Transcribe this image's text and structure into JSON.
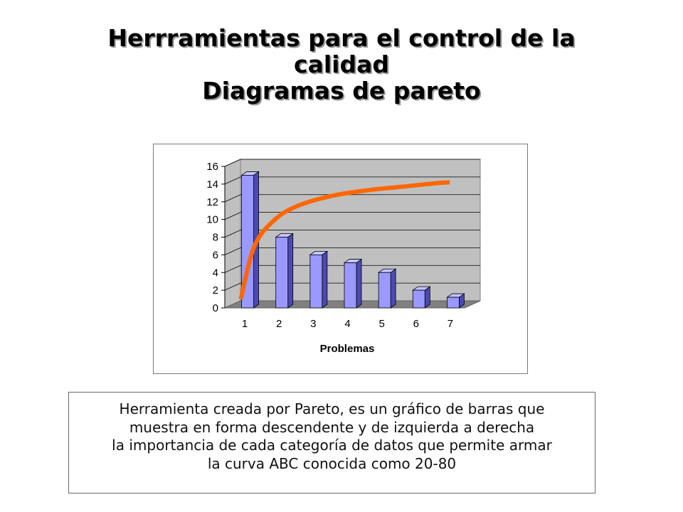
{
  "slide": {
    "title_line1": "Herrramientas para el control de la",
    "title_line2": "calidad",
    "subtitle": "Diagramas de pareto"
  },
  "description": {
    "lines": [
      "Herramienta creada por Pareto, es un gráfico de barras que",
      "muestra en forma descendente y de izquierda a derecha",
      "la importancia de cada categoría de datos que permite armar",
      "la curva ABC conocida como 20-80"
    ]
  },
  "chart_data": {
    "type": "bar",
    "style": "3d-column with overlaid curve",
    "categories": [
      "1",
      "2",
      "3",
      "4",
      "5",
      "6",
      "7"
    ],
    "values": [
      15,
      8,
      6,
      5.1,
      4,
      2,
      1.2
    ],
    "xlabel": "Problemas",
    "ylabel": "",
    "ylim": [
      0,
      16
    ],
    "yticks": [
      0,
      2,
      4,
      6,
      8,
      10,
      12,
      14,
      16
    ],
    "grid": true,
    "legend": "none",
    "curve": {
      "points": [
        [
          0.8,
          1
        ],
        [
          1.2,
          7
        ],
        [
          1.8,
          10
        ],
        [
          2.5,
          11.6
        ],
        [
          3.5,
          12.7
        ],
        [
          4.5,
          13.3
        ],
        [
          5.5,
          13.7
        ],
        [
          6.5,
          14.1
        ],
        [
          6.9,
          14.2
        ]
      ]
    },
    "colors": {
      "bar_front": "#9999ff",
      "bar_side": "#4a4ab4",
      "bar_top": "#c4c4ff",
      "back_wall": "#c0c0c0",
      "floor": "#808080",
      "curve": "#ff6600",
      "grid": "#000000"
    }
  }
}
